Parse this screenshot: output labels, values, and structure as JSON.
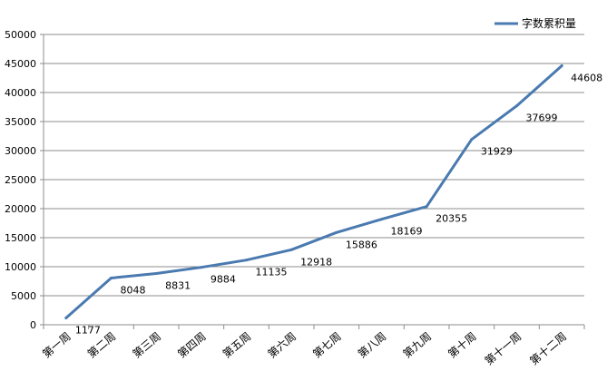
{
  "chart_data": {
    "type": "line",
    "categories": [
      "第一周",
      "第二周",
      "第三周",
      "第四周",
      "第五周",
      "第六周",
      "第七周",
      "第八周",
      "第九周",
      "第十周",
      "第十一周",
      "第十二周"
    ],
    "series": [
      {
        "name": "字数累积量",
        "values": [
          1177,
          8048,
          8831,
          9884,
          11135,
          12918,
          15886,
          18169,
          20355,
          31929,
          37699,
          44608
        ],
        "color": "#4a7ab0"
      }
    ],
    "ylim": [
      0,
      50000
    ],
    "yticks": [
      0,
      5000,
      10000,
      15000,
      20000,
      25000,
      30000,
      35000,
      40000,
      45000,
      50000
    ],
    "grid": true,
    "legend": "top-right",
    "data_labels": true,
    "colors": {
      "grid": "#8c8c8c",
      "axis": "#8c8c8c",
      "line": "#4a7ab0"
    }
  }
}
